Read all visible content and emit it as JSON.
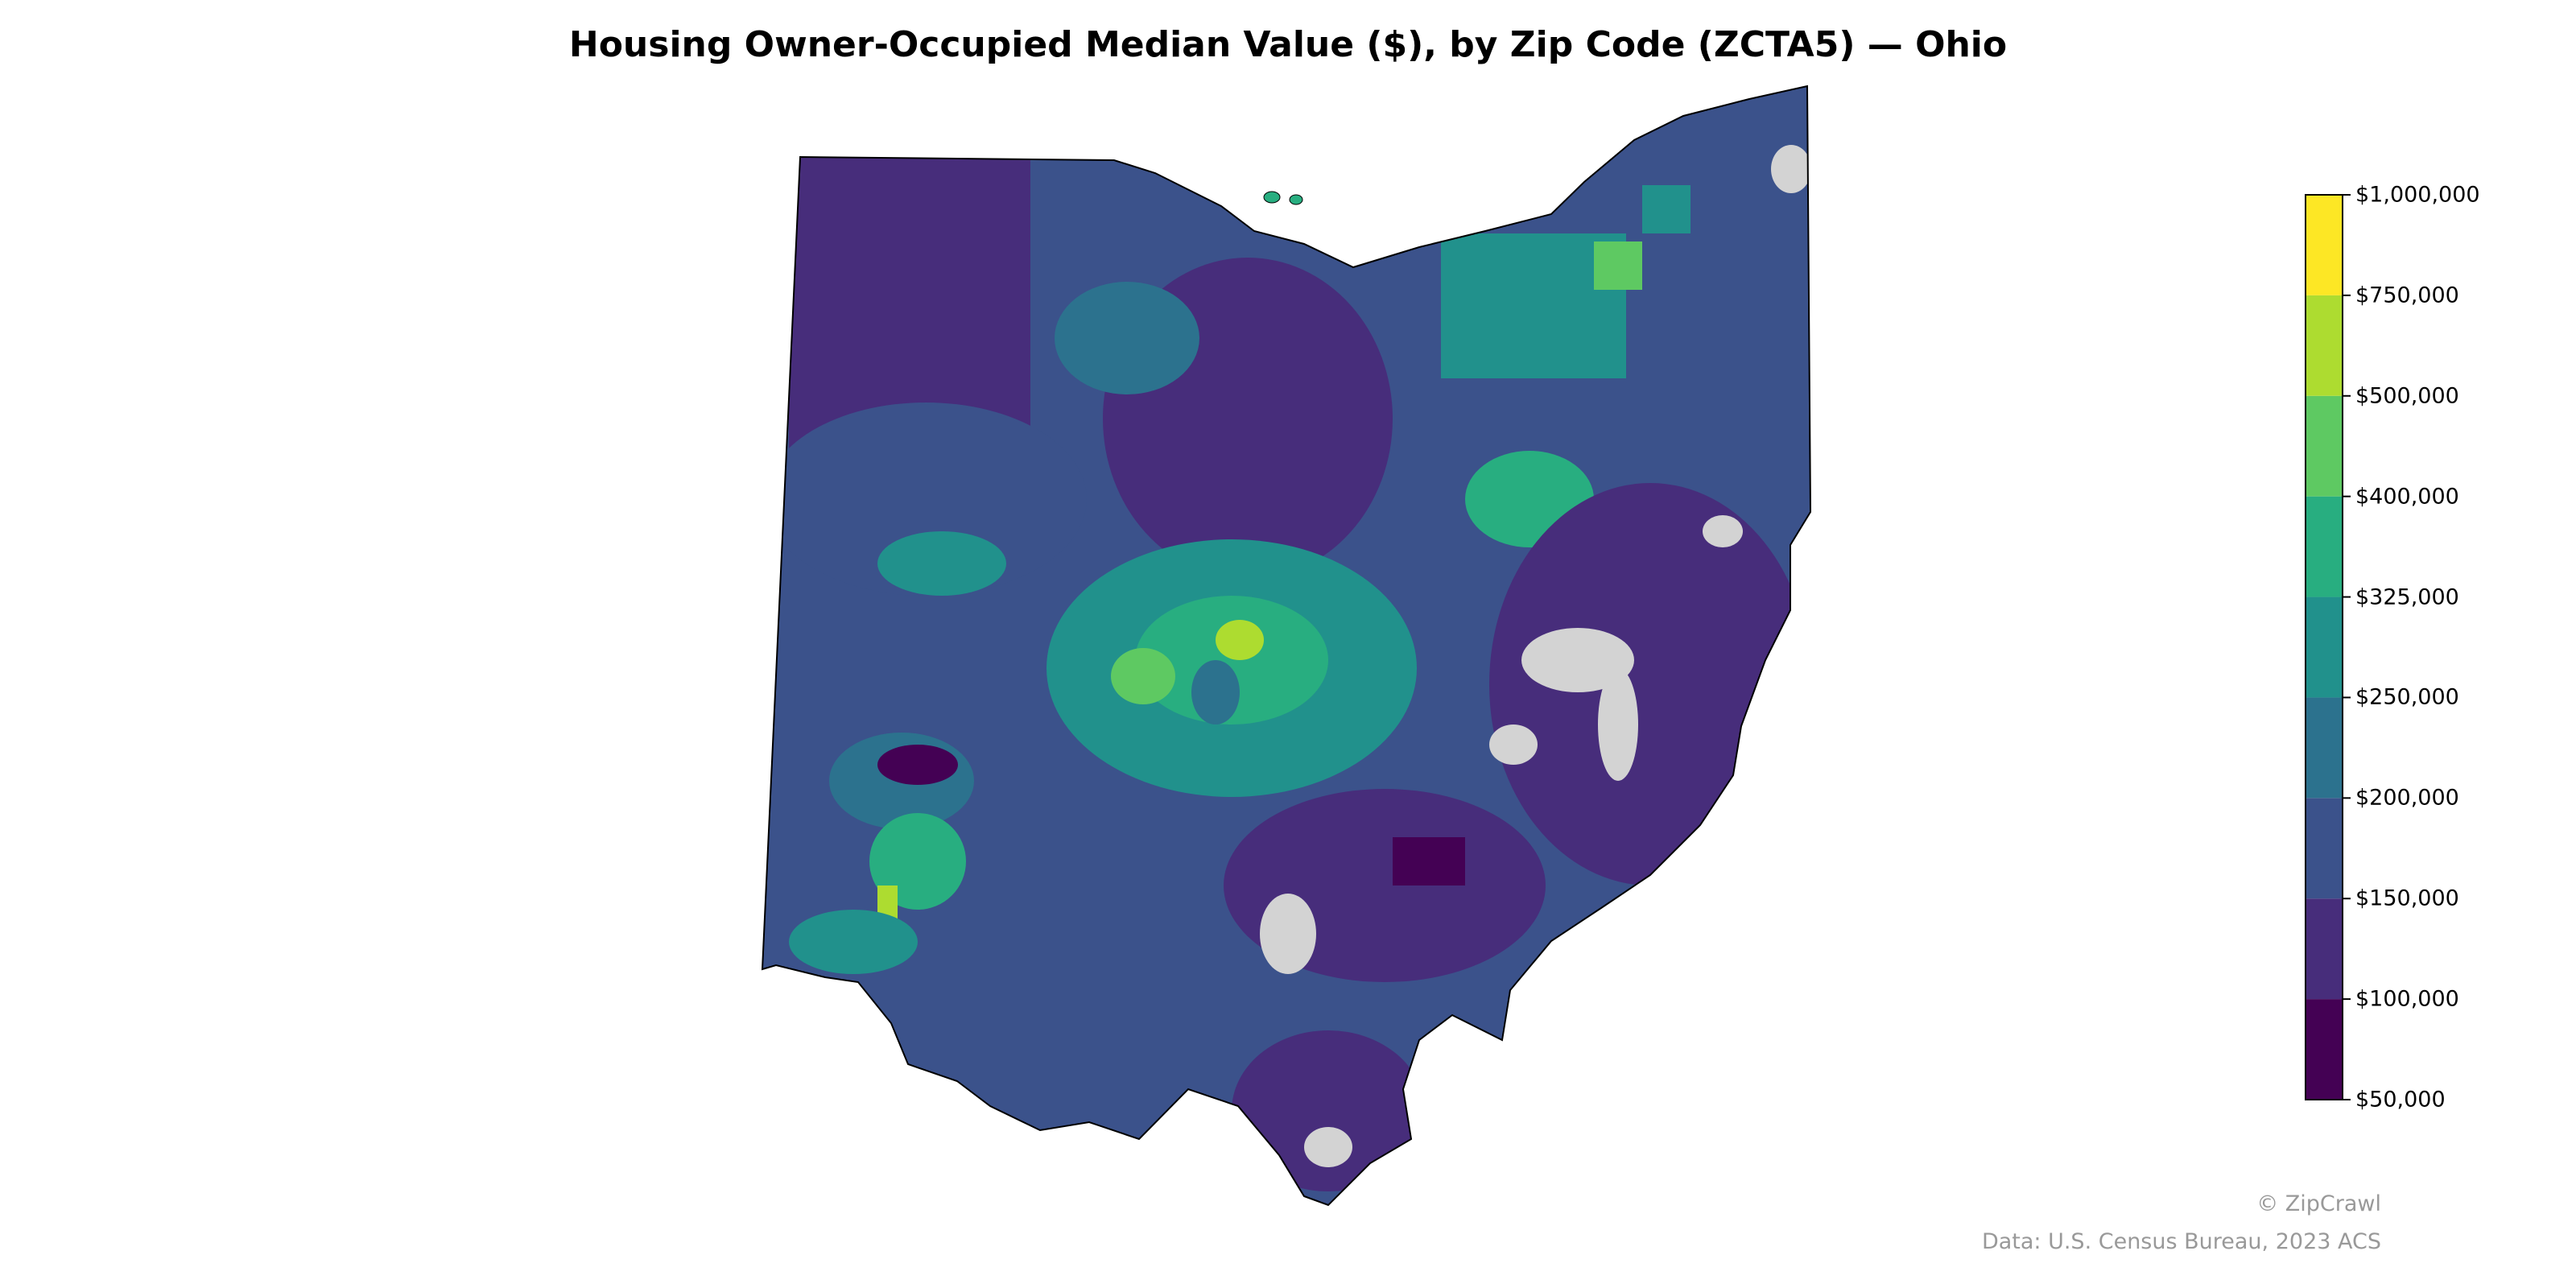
{
  "title": "Housing Owner-Occupied Median Value ($), by Zip Code (ZCTA5) — Ohio",
  "credit": "© ZipCrawl",
  "source": "Data: U.S. Census Bureau, 2023 ACS",
  "colors": {
    "no_data": "#d3d3d3",
    "border": "#000000"
  },
  "chart_data": {
    "type": "choropleth",
    "region": "Ohio",
    "unit": "ZCTA5",
    "colorbar": {
      "ticks": [
        "$50,000",
        "$100,000",
        "$150,000",
        "$200,000",
        "$250,000",
        "$325,000",
        "$400,000",
        "$500,000",
        "$750,000",
        "$1,000,000"
      ],
      "bins": [
        {
          "min": 50000,
          "max": 100000,
          "color": "#440154"
        },
        {
          "min": 100000,
          "max": 150000,
          "color": "#472d7b"
        },
        {
          "min": 150000,
          "max": 200000,
          "color": "#3b528b"
        },
        {
          "min": 200000,
          "max": 250000,
          "color": "#2c728e"
        },
        {
          "min": 250000,
          "max": 325000,
          "color": "#21918c"
        },
        {
          "min": 325000,
          "max": 400000,
          "color": "#28ae80"
        },
        {
          "min": 400000,
          "max": 500000,
          "color": "#5ec962"
        },
        {
          "min": 500000,
          "max": 750000,
          "color": "#addc30"
        },
        {
          "min": 750000,
          "max": 1000000,
          "color": "#fde725"
        }
      ]
    }
  }
}
